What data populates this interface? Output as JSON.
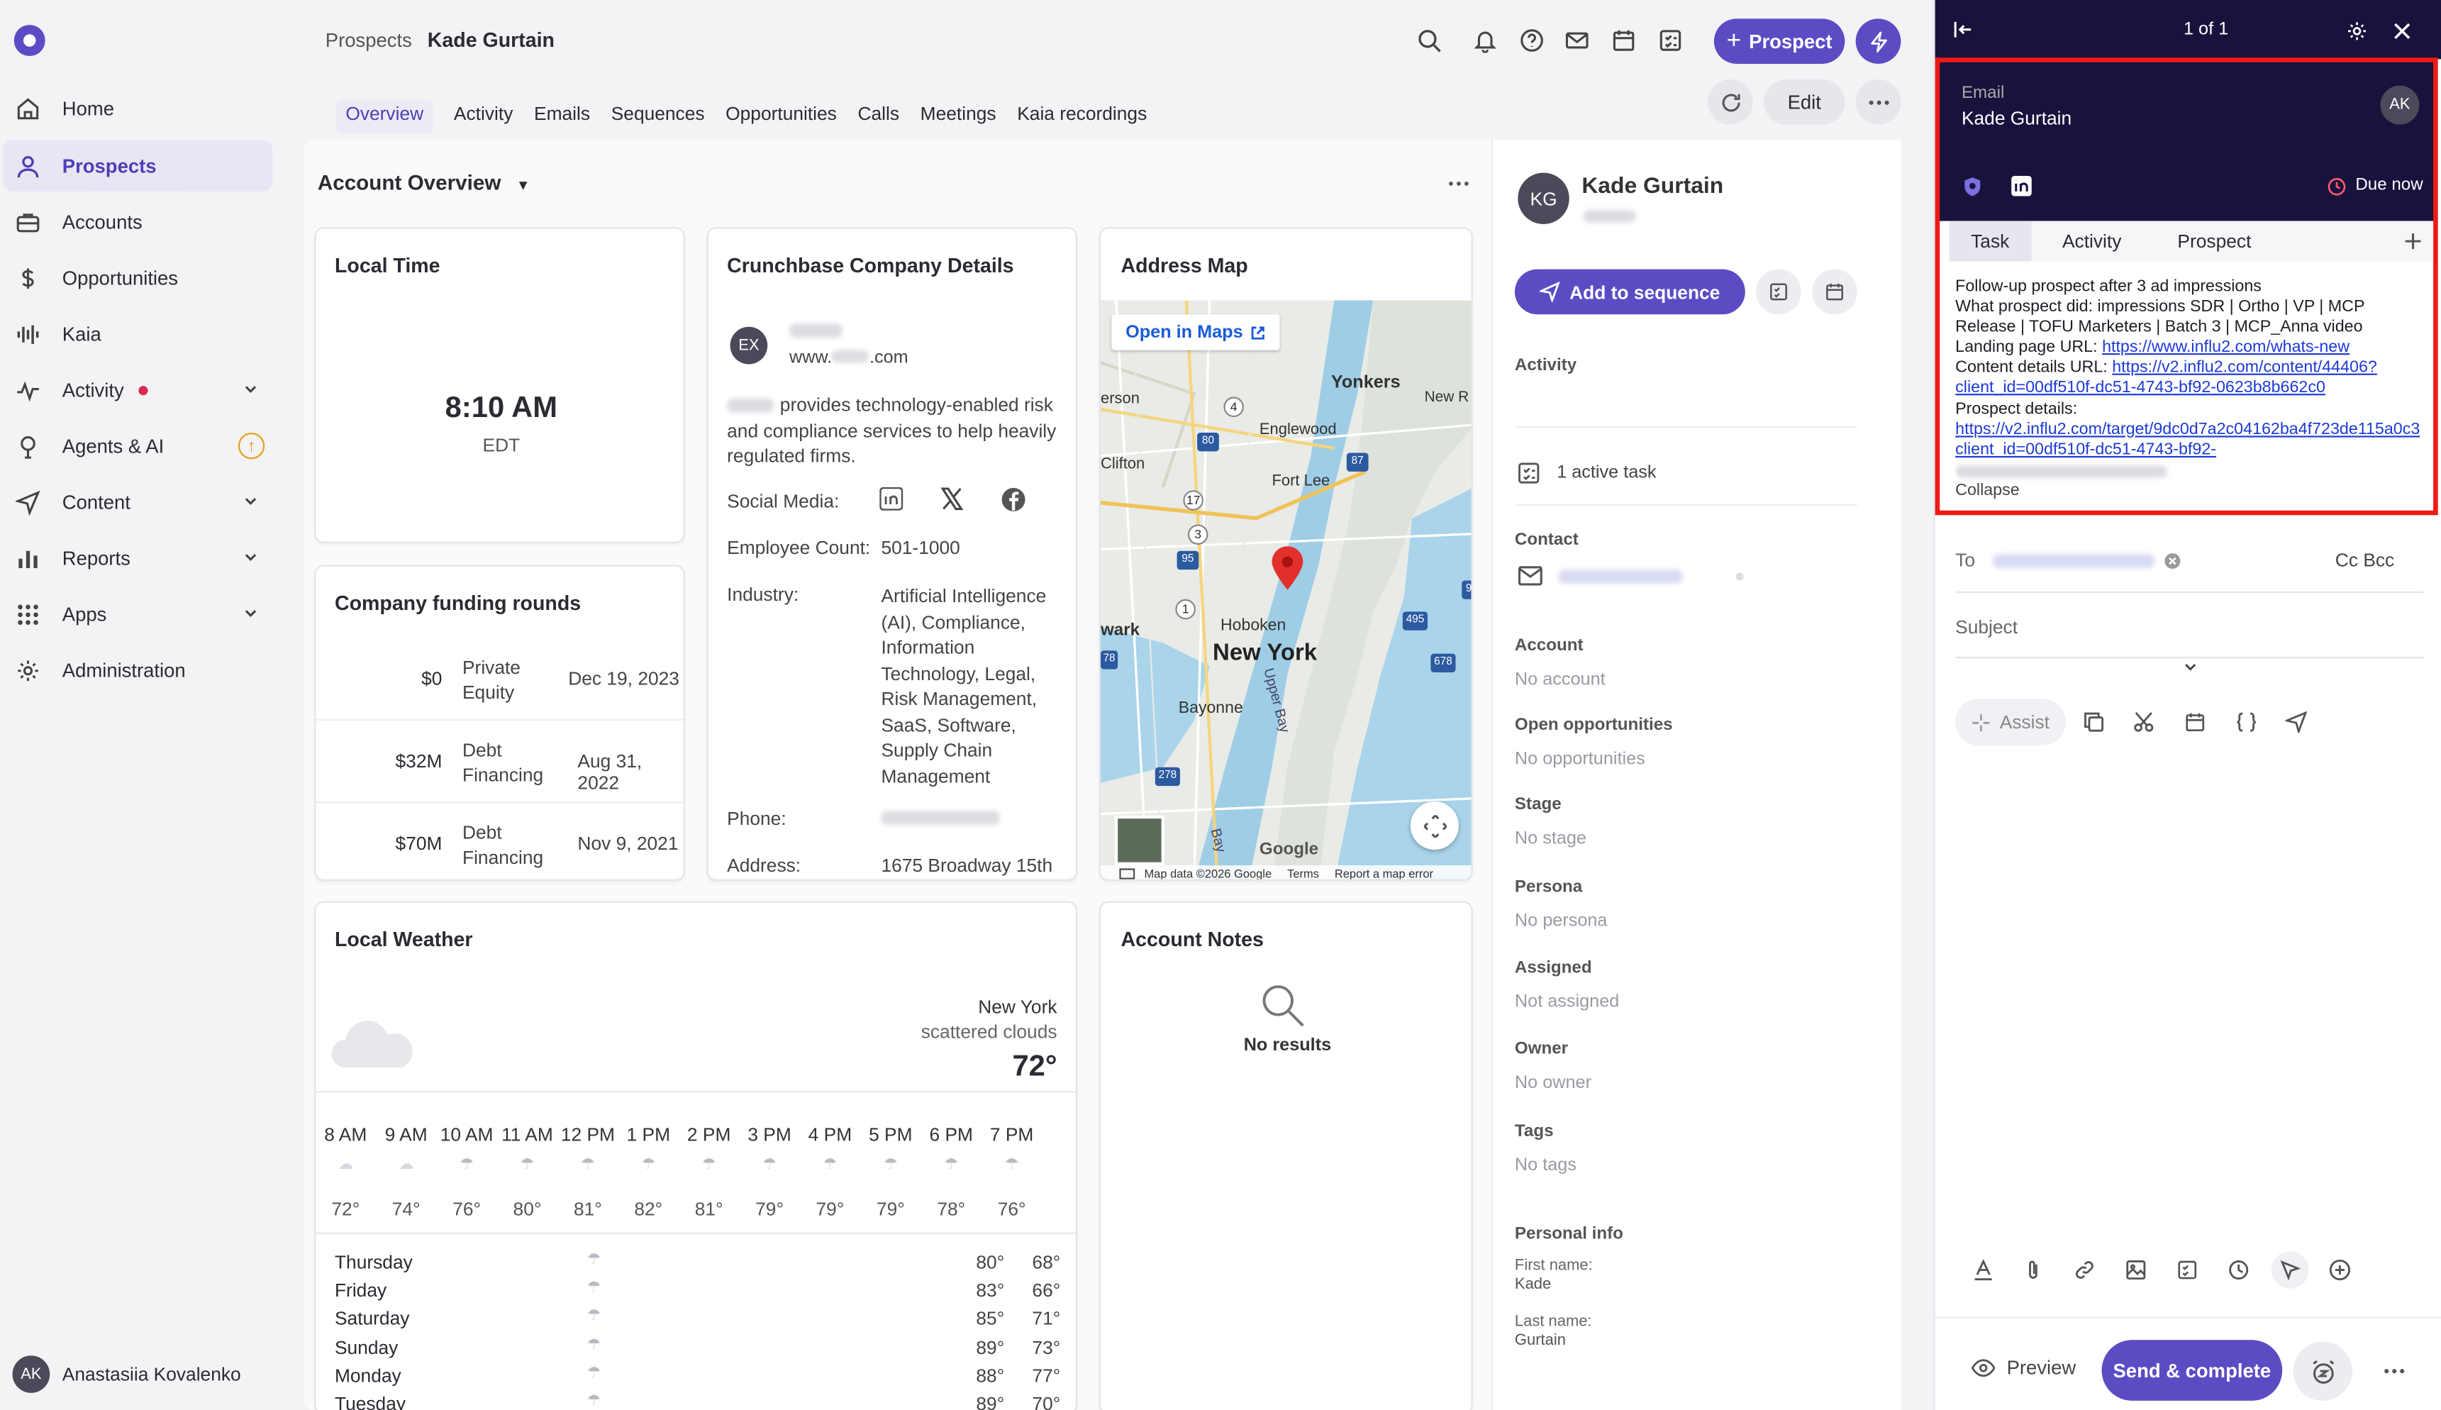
{
  "sidebar": {
    "items": [
      {
        "label": "Home",
        "icon": "home-icon"
      },
      {
        "label": "Prospects",
        "icon": "person-icon",
        "active": true
      },
      {
        "label": "Accounts",
        "icon": "briefcase-icon"
      },
      {
        "label": "Opportunities",
        "icon": "dollar-icon"
      },
      {
        "label": "Kaia",
        "icon": "waveform-icon"
      },
      {
        "label": "Activity",
        "icon": "activity-icon"
      },
      {
        "label": "Agents & AI",
        "icon": "agent-icon"
      },
      {
        "label": "Content",
        "icon": "send-icon"
      },
      {
        "label": "Reports",
        "icon": "bar-chart-icon"
      },
      {
        "label": "Apps",
        "icon": "grid-icon"
      },
      {
        "label": "Administration",
        "icon": "gear-icon"
      }
    ],
    "user": {
      "initials": "AK",
      "name": "Anastasiia Kovalenko"
    }
  },
  "header": {
    "breadcrumb_parent": "Prospects",
    "breadcrumb_current": "Kade Gurtain",
    "prospect_button": "Prospect",
    "edit_button": "Edit",
    "tabs": [
      "Overview",
      "Activity",
      "Emails",
      "Sequences",
      "Opportunities",
      "Calls",
      "Meetings",
      "Kaia recordings"
    ]
  },
  "overview": {
    "title": "Account Overview",
    "local_time": {
      "title": "Local Time",
      "time": "8:10 AM",
      "zone": "EDT"
    },
    "funding": {
      "title": "Company funding rounds",
      "rows": [
        {
          "amount": "$0",
          "type": "Private Equity",
          "date": "Dec 19, 2023"
        },
        {
          "amount": "$32M",
          "type": "Debt Financing",
          "date": "Aug 31, 2022"
        },
        {
          "amount": "$70M",
          "type": "Debt Financing",
          "date": "Nov 9, 2021"
        }
      ]
    },
    "crunchbase": {
      "title": "Crunchbase Company Details",
      "avatar": "EX",
      "website_prefix": "www.",
      "website_suffix": ".com",
      "description": "provides technology-enabled risk and compliance services to help heavily regulated firms.",
      "social_label": "Social Media:",
      "employee_label": "Employee Count:",
      "employee_value": "501-1000",
      "industry_label": "Industry:",
      "industry_value": "Artificial Intelligence (AI), Compliance, Information Technology, Legal, Risk Management, SaaS, Software, Supply Chain Management",
      "phone_label": "Phone:",
      "address_label": "Address:",
      "address_value": "1675 Broadway 15th"
    },
    "map": {
      "title": "Address Map",
      "open_label": "Open in Maps",
      "places": [
        "Yonkers",
        "Englewood",
        "Fort Lee",
        "Clifton",
        "Hoboken",
        "New York",
        "Bayonne",
        "wark",
        "New R",
        "erson",
        "Upper Bay",
        "Bay"
      ],
      "road_numbers": [
        "4",
        "80",
        "87",
        "17",
        "3",
        "95",
        "1",
        "495",
        "278",
        "678",
        "78",
        "9"
      ],
      "attribution": "Map data ©2026 Google",
      "terms": "Terms",
      "report": "Report a map error",
      "google": "Google"
    },
    "weather": {
      "title": "Local Weather",
      "city": "New York",
      "condition": "scattered clouds",
      "temp": "72°",
      "hours": [
        {
          "t": "8 AM",
          "v": "72°"
        },
        {
          "t": "9 AM",
          "v": "74°"
        },
        {
          "t": "10 AM",
          "v": "76°"
        },
        {
          "t": "11 AM",
          "v": "80°"
        },
        {
          "t": "12 PM",
          "v": "81°"
        },
        {
          "t": "1 PM",
          "v": "82°"
        },
        {
          "t": "2 PM",
          "v": "81°"
        },
        {
          "t": "3 PM",
          "v": "79°"
        },
        {
          "t": "4 PM",
          "v": "79°"
        },
        {
          "t": "5 PM",
          "v": "79°"
        },
        {
          "t": "6 PM",
          "v": "78°"
        },
        {
          "t": "7 PM",
          "v": "76°"
        }
      ],
      "days": [
        {
          "d": "Thursday",
          "hi": "80°",
          "lo": "68°"
        },
        {
          "d": "Friday",
          "hi": "83°",
          "lo": "66°"
        },
        {
          "d": "Saturday",
          "hi": "85°",
          "lo": "71°"
        },
        {
          "d": "Sunday",
          "hi": "89°",
          "lo": "73°"
        },
        {
          "d": "Monday",
          "hi": "88°",
          "lo": "77°"
        },
        {
          "d": "Tuesday",
          "hi": "89°",
          "lo": "70°"
        }
      ]
    },
    "notes": {
      "title": "Account Notes",
      "empty": "No results"
    }
  },
  "prospect_panel": {
    "initials": "KG",
    "name": "Kade Gurtain",
    "add_to_sequence": "Add to sequence",
    "activity_label": "Activity",
    "active_task": "1 active task",
    "contact_label": "Contact",
    "fields": [
      {
        "label": "Account",
        "value": "No account"
      },
      {
        "label": "Open opportunities",
        "value": "No opportunities"
      },
      {
        "label": "Stage",
        "value": "No stage"
      },
      {
        "label": "Persona",
        "value": "No persona"
      },
      {
        "label": "Assigned",
        "value": "Not assigned"
      },
      {
        "label": "Owner",
        "value": "No owner"
      },
      {
        "label": "Tags",
        "value": "No tags"
      }
    ],
    "personal_info": "Personal info",
    "first_name_label": "First name:",
    "first_name": "Kade",
    "last_name_label": "Last name:",
    "last_name": "Gurtain"
  },
  "compose": {
    "counter": "1 of 1",
    "type_label": "Email",
    "prospect_name": "Kade Gurtain",
    "avatar": "AK",
    "due": "Due now",
    "tabs": [
      "Task",
      "Activity",
      "Prospect"
    ],
    "task_lines": [
      "Follow-up prospect after 3 ad impressions",
      "What prospect did: impressions SDR | Ortho | VP | MCP",
      "Release | TOFU Marketers | Batch 3 | MCP_Anna video"
    ],
    "landing_label": "Landing page URL:",
    "landing_url": "https://www.influ2.com/whats-new",
    "content_label": "Content details URL:",
    "content_url_1": "https://v2.influ2.com/content/44406?",
    "content_url_2": "client_id=00df510f-dc51-4743-bf92-0623b8b662c0",
    "prospect_details_label": "Prospect details:",
    "prospect_url_1": "https://v2.influ2.com/target/9dc0d7a2c04162ba4f723de115a0c3",
    "prospect_url_2": "client_id=00df510f-dc51-4743-bf92-",
    "collapse": "Collapse",
    "to_label": "To",
    "cc_bcc": "Cc Bcc",
    "subject_label": "Subject",
    "assist": "Assist",
    "preview": "Preview",
    "send": "Send & complete"
  },
  "colors": {
    "accent": "#5b4cc4",
    "dark_header": "#17133d",
    "highlight": "#f01a14"
  }
}
